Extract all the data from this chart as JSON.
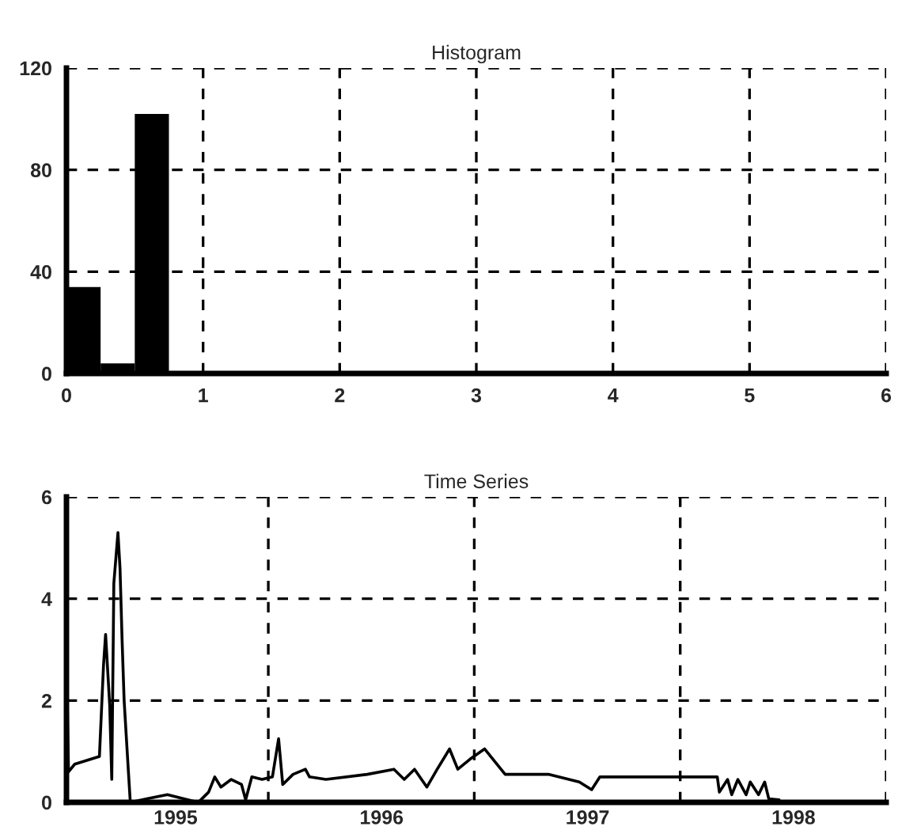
{
  "chart_data": [
    {
      "type": "histogram",
      "title": "Histogram",
      "bins": [
        0,
        0.25,
        0.5,
        0.75
      ],
      "values": [
        34,
        4,
        102
      ],
      "color": "#000000",
      "xlim": [
        0,
        6
      ],
      "ylim": [
        0,
        120
      ],
      "xticks": [
        0,
        1,
        2,
        3,
        4,
        5,
        6
      ],
      "yticks": [
        0,
        40,
        80,
        120
      ],
      "grid": true
    },
    {
      "type": "line",
      "title": "Time Series",
      "color": "#000000",
      "xlim": [
        1994.47,
        1998.45
      ],
      "ylim": [
        0,
        6
      ],
      "yticks": [
        0,
        2,
        4,
        6
      ],
      "grid": true,
      "xticks": [
        {
          "value": 1995,
          "label": "1995"
        },
        {
          "value": 1995.45,
          "label": null
        },
        {
          "value": 1996,
          "label": "1996"
        },
        {
          "value": 1996.45,
          "label": null
        },
        {
          "value": 1997,
          "label": "1997"
        },
        {
          "value": 1997.45,
          "label": null
        },
        {
          "value": 1998,
          "label": "1998"
        },
        {
          "value": 1998.45,
          "label": null
        }
      ],
      "x": [
        1994.47,
        1994.47,
        1994.48,
        1994.51,
        1994.59,
        1994.63,
        1994.64,
        1994.65,
        1994.66,
        1994.68,
        1994.69,
        1994.7,
        1994.72,
        1994.73,
        1994.74,
        1994.75,
        1994.77,
        1994.78,
        1994.86,
        1994.96,
        1995.04,
        1995.11,
        1995.16,
        1995.19,
        1995.22,
        1995.27,
        1995.32,
        1995.34,
        1995.37,
        1995.42,
        1995.47,
        1995.5,
        1995.52,
        1995.57,
        1995.63,
        1995.65,
        1995.73,
        1995.93,
        1996.06,
        1996.11,
        1996.16,
        1996.22,
        1996.27,
        1996.33,
        1996.37,
        1996.43,
        1996.5,
        1996.6,
        1996.81,
        1996.96,
        1997.02,
        1997.06,
        1997.39,
        1997.55,
        1997.63,
        1997.64,
        1997.68,
        1997.7,
        1997.73,
        1997.77,
        1997.79,
        1997.83,
        1997.86,
        1997.88,
        1997.93
      ],
      "values": [
        0,
        2.9,
        0.6,
        0.75,
        0.85,
        0.9,
        1.8,
        2.7,
        3.3,
        1.9,
        0.45,
        4.3,
        5.3,
        4.6,
        3.2,
        2.0,
        0.65,
        0,
        0.07,
        0.15,
        0.07,
        0,
        0.2,
        0.5,
        0.3,
        0.45,
        0.35,
        0.05,
        0.5,
        0.45,
        0.5,
        1.25,
        0.35,
        0.55,
        0.65,
        0.5,
        0.45,
        0.55,
        0.65,
        0.45,
        0.65,
        0.3,
        0.65,
        1.05,
        0.65,
        0.85,
        1.05,
        0.55,
        0.55,
        0.4,
        0.25,
        0.5,
        0.5,
        0.5,
        0.5,
        0.2,
        0.45,
        0.15,
        0.45,
        0.15,
        0.4,
        0.15,
        0.4,
        0.07,
        0.05
      ]
    }
  ]
}
